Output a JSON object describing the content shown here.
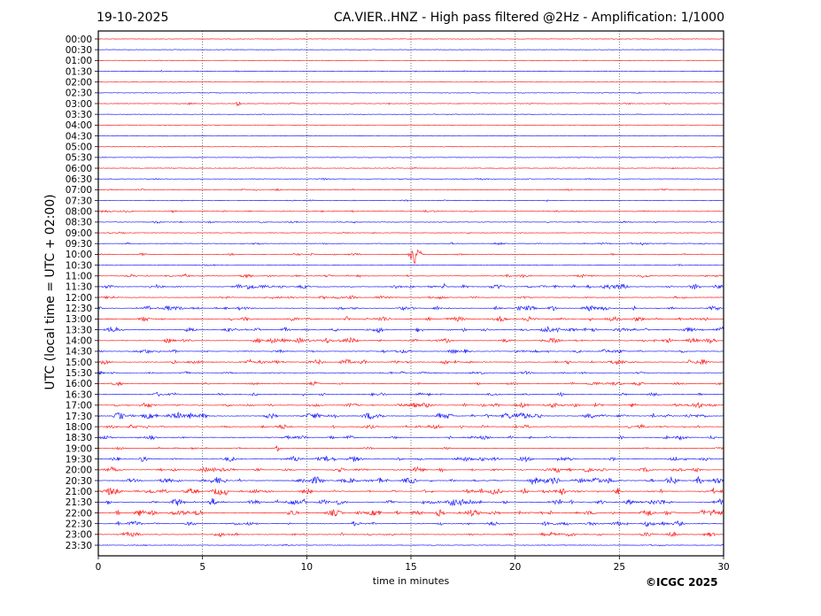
{
  "header": {
    "date": "19-10-2025",
    "title": "CA.VIER..HNZ - High pass filtered @2Hz - Amplification: 1/1000"
  },
  "credit": "©ICGC 2025",
  "chart_data": {
    "type": "line",
    "title": "CA.VIER..HNZ - High pass filtered @2Hz - Amplification: 1/1000",
    "xlabel": "time in minutes",
    "ylabel": "UTC (local time = UTC + 02:00)",
    "xlim": [
      0,
      30
    ],
    "x_ticks": [
      "0",
      "5",
      "10",
      "15",
      "20",
      "25",
      "30"
    ],
    "grid": "vertical dotted at 5-minute intervals",
    "row_colors": [
      "#ff0000",
      "#0000ff"
    ],
    "rows": [
      {
        "label": "00:00",
        "activity": 0.05
      },
      {
        "label": "00:30",
        "activity": 0.05
      },
      {
        "label": "01:00",
        "activity": 0.1
      },
      {
        "label": "01:30",
        "activity": 0.2
      },
      {
        "label": "02:00",
        "activity": 0.1
      },
      {
        "label": "02:30",
        "activity": 0.1
      },
      {
        "label": "03:00",
        "activity": 0.2
      },
      {
        "label": "03:30",
        "activity": 0.1
      },
      {
        "label": "04:00",
        "activity": 0.05
      },
      {
        "label": "04:30",
        "activity": 0.1
      },
      {
        "label": "05:00",
        "activity": 0.05
      },
      {
        "label": "05:30",
        "activity": 0.1
      },
      {
        "label": "06:00",
        "activity": 0.15
      },
      {
        "label": "06:30",
        "activity": 0.2
      },
      {
        "label": "07:00",
        "activity": 0.3
      },
      {
        "label": "07:30",
        "activity": 0.2
      },
      {
        "label": "08:00",
        "activity": 0.35
      },
      {
        "label": "08:30",
        "activity": 0.3
      },
      {
        "label": "09:00",
        "activity": 0.2
      },
      {
        "label": "09:30",
        "activity": 0.3
      },
      {
        "label": "10:00",
        "activity": 0.25
      },
      {
        "label": "10:30",
        "activity": 0.2
      },
      {
        "label": "11:00",
        "activity": 0.4
      },
      {
        "label": "11:30",
        "activity": 0.6
      },
      {
        "label": "12:00",
        "activity": 0.4
      },
      {
        "label": "12:30",
        "activity": 0.6
      },
      {
        "label": "13:00",
        "activity": 0.6
      },
      {
        "label": "13:30",
        "activity": 0.6
      },
      {
        "label": "14:00",
        "activity": 0.6
      },
      {
        "label": "14:30",
        "activity": 0.5
      },
      {
        "label": "15:00",
        "activity": 0.6
      },
      {
        "label": "15:30",
        "activity": 0.4
      },
      {
        "label": "16:00",
        "activity": 0.4
      },
      {
        "label": "16:30",
        "activity": 0.5
      },
      {
        "label": "17:00",
        "activity": 0.6
      },
      {
        "label": "17:30",
        "activity": 0.8
      },
      {
        "label": "18:00",
        "activity": 0.5
      },
      {
        "label": "18:30",
        "activity": 0.5
      },
      {
        "label": "19:00",
        "activity": 0.3
      },
      {
        "label": "19:30",
        "activity": 0.6
      },
      {
        "label": "20:00",
        "activity": 0.6
      },
      {
        "label": "20:30",
        "activity": 0.8
      },
      {
        "label": "21:00",
        "activity": 0.8
      },
      {
        "label": "21:30",
        "activity": 0.8
      },
      {
        "label": "22:00",
        "activity": 0.8
      },
      {
        "label": "22:30",
        "activity": 0.6
      },
      {
        "label": "23:00",
        "activity": 0.5
      },
      {
        "label": "23:30",
        "activity": 0.2
      }
    ],
    "events": [
      {
        "row": "10:00",
        "minute": 15.2,
        "amplitude": "large"
      },
      {
        "row": "03:00",
        "minute": 6.7,
        "amplitude": "small"
      },
      {
        "row": "19:00",
        "minute": 8.6,
        "amplitude": "small"
      }
    ]
  }
}
